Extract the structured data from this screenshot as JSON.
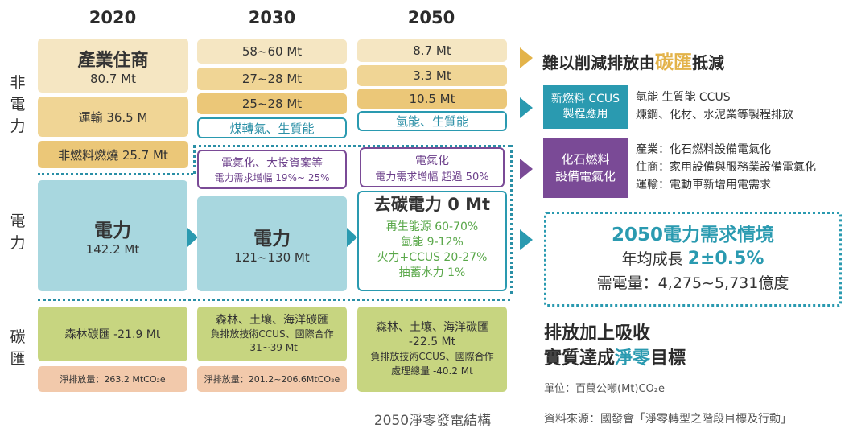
{
  "years": [
    "2020",
    "2030",
    "2050"
  ],
  "side_labels": {
    "non_power": "非\n電\n力",
    "power": "電\n力",
    "sink": "碳\n匯"
  },
  "col2020": {
    "industry_title": "產業住商",
    "industry_value": "80.7 Mt",
    "transport": "運輸  36.5 M",
    "nonfuel": "非燃料燃燒 25.7 Mt",
    "power_title": "電力",
    "power_value": "142.2 Mt",
    "sink": "森林碳匯 -21.9 Mt",
    "net": "淨排放量：263.2 MtCO₂e"
  },
  "col2030": {
    "v1": "58~60 Mt",
    "v2": "27~28 Mt",
    "v3": "25~28 Mt",
    "fuels": "煤轉氣、生質能",
    "elec_line1": "電氣化、大投資案等",
    "elec_line2": "電力需求增幅 19%~ 25%",
    "power_title": "電力",
    "power_value": "121~130 Mt",
    "sink_line1": "森林、土壤、海洋碳匯",
    "sink_line2": "負排放技術CCUS、國際合作",
    "sink_line3": "-31~39 Mt",
    "net": "淨排放量：201.2~206.6MtCO₂e"
  },
  "col2050": {
    "v1": "8.7 Mt",
    "v2": "3.3 Mt",
    "v3": "10.5 Mt",
    "fuels": "氫能、生質能",
    "elec_line1": "電氣化",
    "elec_line2": "電力需求增幅 超過 50%",
    "power_title": "去碳電力 0 Mt",
    "mix1": "再生能源 60-70%",
    "mix2": "氫能 9-12%",
    "mix3": "火力+CCUS  20-27%",
    "mix4": "抽蓄水力 1%",
    "sink_line1": "森林、土壤、海洋碳匯",
    "sink_line2": "-22.5 Mt",
    "sink_line3": "負排放技術CCUS、國際合作",
    "sink_line4": "處理總量 -40.2 Mt",
    "caption": "2050淨零發電結構"
  },
  "right": {
    "offset_pre": "難以削減排放由",
    "offset_hl": "碳匯",
    "offset_post": "抵減",
    "ccus_label_1": "新燃料 CCUS",
    "ccus_label_2": "製程應用",
    "ccus_text_1": "氫能  生質能 CCUS",
    "ccus_text_2": "煉鋼、化材、水泥業等製程排放",
    "fossil_label_1": "化石燃料",
    "fossil_label_2": "設備電氣化",
    "fossil_text_1": "產業：化石燃料設備電氣化",
    "fossil_text_2": "住商：家用設備與服務業設備電氣化",
    "fossil_text_3": "運輸：電動車新增用電需求",
    "scenario_title": "2050電力需求情境",
    "growth_pre": "年均成長 ",
    "growth_val": "2±0.5%",
    "demand": "需電量：4,275~5,731億度",
    "goal_line1": "排放加上吸收",
    "goal_line2_pre": "實質達成",
    "goal_line2_hl": "淨零",
    "goal_line2_post": "目標",
    "unit": "單位：百萬公噸(Mt)CO₂e",
    "source": "資料來源：國發會「淨零轉型之階段目標及行動」"
  },
  "colors": {
    "teal": "#2a9ab0",
    "purple": "#7a4a96",
    "gold": "#e3b34a",
    "green_text": "#5aa84a"
  }
}
